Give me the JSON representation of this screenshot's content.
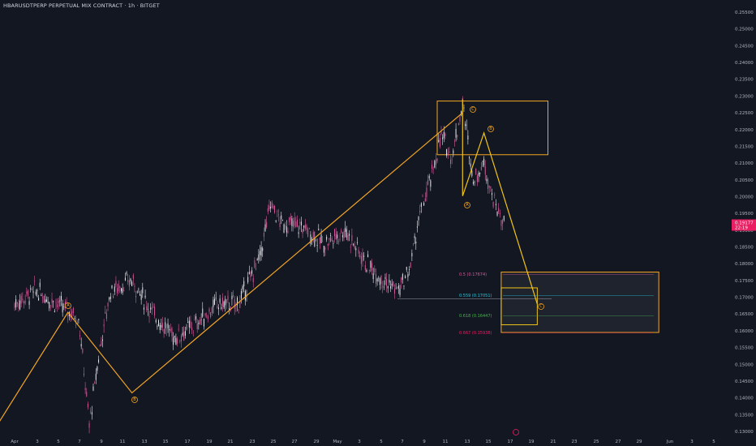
{
  "title": "HBARUSDTPERP PERPETUAL MIX CONTRACT · 1h · BITGET",
  "colors": {
    "background": "#131722",
    "candle_up": "#e8e8ee",
    "candle_down": "#d6589a",
    "wave": "#f5a623",
    "wave_yellow": "#f0c419",
    "price_tag": "#e91e63",
    "fib_05": "#d6589a",
    "fib_0559": "#26c6da",
    "fib_0618": "#4caf50",
    "fib_0667": "#e91e63"
  },
  "price_tag": {
    "price": "0.19177",
    "timer": "22:19"
  },
  "fib_levels": [
    {
      "label": "0.5 (0.17674)",
      "value": 0.17674,
      "color": "#d6589a"
    },
    {
      "label": "0.559 (0.17051)",
      "value": 0.17051,
      "color": "#26c6da"
    },
    {
      "label": "0.618 (0.16447)",
      "value": 0.16447,
      "color": "#4caf50"
    },
    {
      "label": "0.667 (0.15938)",
      "value": 0.15938,
      "color": "#e91e63"
    }
  ],
  "wave_labels": [
    "A",
    "B",
    "C",
    "B",
    "A",
    "C"
  ],
  "chart_data": {
    "type": "line",
    "title": "HBARUSDTPERP PERPETUAL MIX CONTRACT · 1h · BITGET",
    "ylim": [
      0.13,
      0.255
    ],
    "y_ticks": [
      "0.25500",
      "0.25000",
      "0.24500",
      "0.24000",
      "0.23500",
      "0.23000",
      "0.22500",
      "0.22000",
      "0.21500",
      "0.21000",
      "0.20500",
      "0.20000",
      "0.19500",
      "0.19000",
      "0.18500",
      "0.18000",
      "0.17500",
      "0.17000",
      "0.16500",
      "0.16000",
      "0.15500",
      "0.15000",
      "0.14500",
      "0.14000",
      "0.13500",
      "0.13000"
    ],
    "x_ticks": [
      "Apr",
      "3",
      "5",
      "7",
      "9",
      "11",
      "13",
      "15",
      "17",
      "19",
      "21",
      "23",
      "25",
      "27",
      "29",
      "May",
      "3",
      "5",
      "7",
      "9",
      "11",
      "13",
      "15",
      "17",
      "19",
      "21",
      "23",
      "25",
      "27",
      "29",
      "Jun",
      "3",
      "5"
    ],
    "series": [
      {
        "x": [
          "Apr 1",
          "Apr 3",
          "Apr 5",
          "Apr 7",
          "Apr 8",
          "Apr 9",
          "Apr 10",
          "Apr 12",
          "Apr 14",
          "Apr 16",
          "Apr 18",
          "Apr 20",
          "Apr 22",
          "Apr 24",
          "Apr 25",
          "Apr 26",
          "Apr 28",
          "Apr 30",
          "May 2",
          "May 4",
          "May 6",
          "May 7",
          "May 8",
          "May 9",
          "May 10",
          "May 11",
          "May 12",
          "May 13",
          "May 14",
          "May 15",
          "May 16",
          "May 17"
        ],
        "values": [
          0.168,
          0.172,
          0.168,
          0.164,
          0.132,
          0.155,
          0.172,
          0.175,
          0.165,
          0.158,
          0.162,
          0.168,
          0.168,
          0.182,
          0.198,
          0.192,
          0.191,
          0.186,
          0.19,
          0.18,
          0.174,
          0.172,
          0.178,
          0.195,
          0.205,
          0.218,
          0.212,
          0.228,
          0.205,
          0.21,
          0.198,
          0.191
        ]
      }
    ],
    "wave_lines": [
      {
        "x": [
          "Mar 30",
          "Apr 6",
          "Apr 12",
          "May 13"
        ],
        "values": [
          0.13,
          0.1655,
          0.1415,
          0.225
        ]
      },
      {
        "x": [
          "May 13",
          "May 13",
          "May 15",
          "May 20"
        ],
        "values": [
          0.229,
          0.2002,
          0.219,
          0.168
        ]
      }
    ],
    "boxes": [
      {
        "x": [
          "May 11",
          "May 21"
        ],
        "values": [
          0.2285,
          0.2125
        ]
      },
      {
        "x": [
          "May 17",
          "Jun 1"
        ],
        "values": [
          0.1775,
          0.1595
        ]
      },
      {
        "x": [
          "May 17",
          "May 20"
        ],
        "values": [
          0.1728,
          0.1618
        ]
      }
    ]
  }
}
